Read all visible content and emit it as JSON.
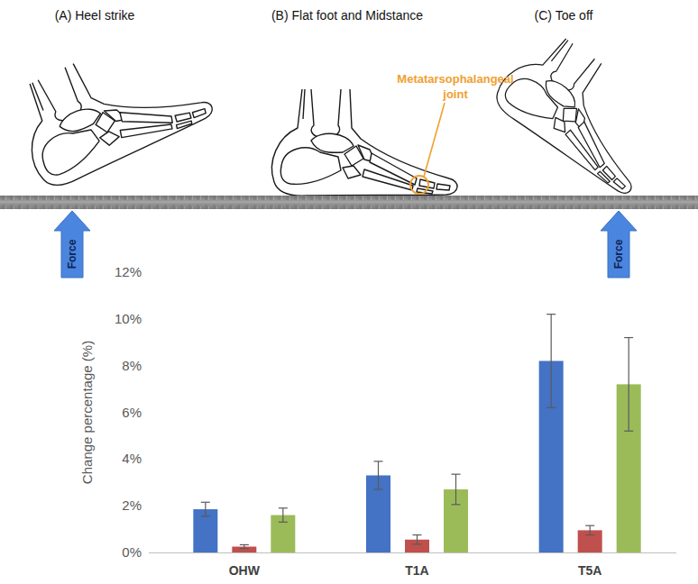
{
  "diagram": {
    "panels": [
      {
        "title": "(A) Heel strike"
      },
      {
        "title": "(B) Flat foot and Midstance"
      },
      {
        "title": "(C) Toe off"
      }
    ],
    "annotation": "Metatarsophalangeal joint",
    "forces": [
      {
        "label": "Force"
      },
      {
        "label": "Force"
      }
    ]
  },
  "chart_data": {
    "type": "bar",
    "y_label": "Change percentage (%)",
    "categories": [
      "OHW",
      "T1A",
      "T5A"
    ],
    "series": [
      {
        "color": "#4472c4",
        "values": [
          1.85,
          3.3,
          8.2
        ],
        "errors": [
          0.3,
          0.6,
          2.0
        ]
      },
      {
        "color": "#c0504d",
        "values": [
          0.25,
          0.55,
          0.95
        ],
        "errors": [
          0.08,
          0.2,
          0.2
        ]
      },
      {
        "color": "#9bbb59",
        "values": [
          1.6,
          2.7,
          7.2
        ],
        "errors": [
          0.3,
          0.65,
          2.0
        ]
      }
    ],
    "ylim": [
      0,
      12
    ],
    "yticks": [
      {
        "value": 0,
        "label": "0%"
      },
      {
        "value": 2,
        "label": "2%"
      },
      {
        "value": 4,
        "label": "4%"
      },
      {
        "value": 6,
        "label": "6%"
      },
      {
        "value": 8,
        "label": "8%"
      },
      {
        "value": 10,
        "label": "10%"
      },
      {
        "value": 12,
        "label": "12%"
      }
    ],
    "grid": false
  }
}
